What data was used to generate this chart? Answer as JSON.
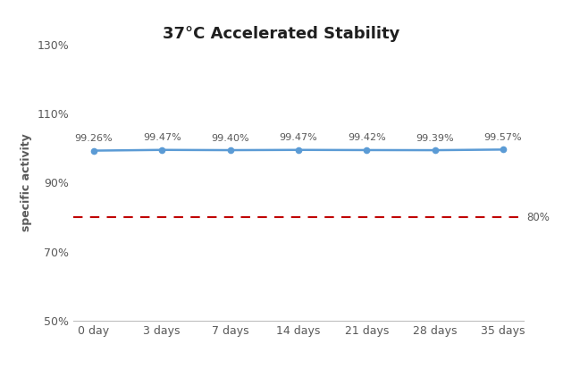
{
  "title_part1": "37°C",
  "title_part2": " Accelerated Stability",
  "xlabel": "",
  "ylabel": "specific activity",
  "x_labels": [
    "0 day",
    "3 days",
    "7 days",
    "14 days",
    "21 days",
    "28 days",
    "35 days"
  ],
  "x_values": [
    0,
    1,
    2,
    3,
    4,
    5,
    6
  ],
  "y_values": [
    99.26,
    99.47,
    99.4,
    99.47,
    99.42,
    99.39,
    99.57
  ],
  "data_labels": [
    "99.26%",
    "99.47%",
    "99.40%",
    "99.47%",
    "99.42%",
    "99.39%",
    "99.57%"
  ],
  "line_color": "#5B9BD5",
  "marker_color": "#5B9BD5",
  "dashed_line_y": 80,
  "dashed_line_color": "#C00000",
  "dashed_label": "80%",
  "ylim": [
    50,
    130
  ],
  "yticks": [
    50,
    70,
    90,
    110,
    130
  ],
  "ytick_labels": [
    "50%",
    "70%",
    "90%",
    "110%",
    "130%"
  ],
  "figsize": [
    6.3,
    4.13
  ],
  "dpi": 100,
  "title_fontsize": 13,
  "axis_label_fontsize": 9,
  "tick_fontsize": 9,
  "data_label_fontsize": 8,
  "label_color": "#595959",
  "tick_color": "#595959",
  "spine_color": "#BFBFBF",
  "background_color": "#ffffff"
}
